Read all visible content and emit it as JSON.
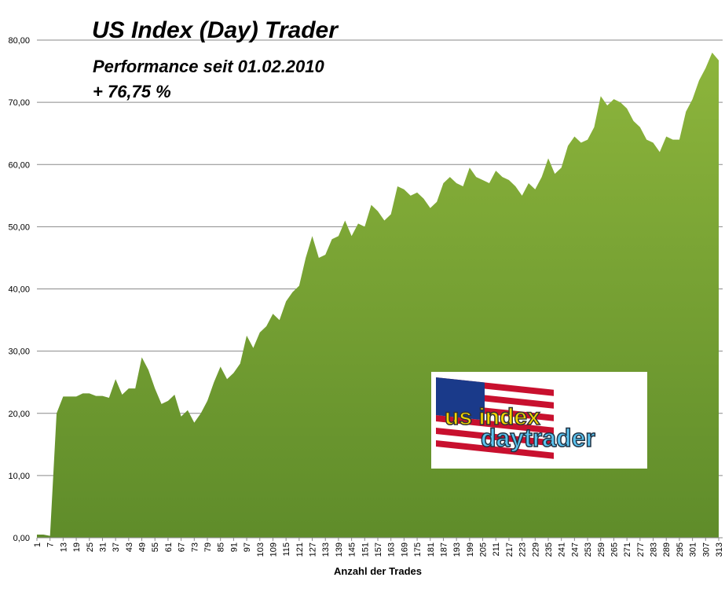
{
  "chart_data": {
    "type": "area",
    "title": "US Index (Day) Trader",
    "subtitle": "Performance  seit  01.02.2010",
    "annotation": "+ 76,75 %",
    "x_label": "Anzahl der Trades",
    "logo_texts": [
      "us index",
      "daytrader"
    ],
    "color": "#8db53c",
    "grid": true,
    "x": [
      1,
      4,
      7,
      10,
      13,
      16,
      19,
      22,
      25,
      28,
      31,
      34,
      37,
      40,
      43,
      46,
      49,
      52,
      55,
      58,
      61,
      64,
      67,
      70,
      73,
      76,
      79,
      82,
      85,
      88,
      91,
      94,
      97,
      100,
      103,
      106,
      109,
      112,
      115,
      118,
      121,
      124,
      127,
      130,
      133,
      136,
      139,
      142,
      145,
      148,
      151,
      154,
      157,
      160,
      163,
      166,
      169,
      172,
      175,
      178,
      181,
      184,
      187,
      190,
      193,
      196,
      199,
      202,
      205,
      208,
      211,
      214,
      217,
      220,
      223,
      226,
      229,
      232,
      235,
      238,
      241,
      244,
      247,
      250,
      253,
      256,
      259,
      262,
      265,
      268,
      271,
      274,
      277,
      280,
      283,
      286,
      289,
      292,
      295,
      298,
      301,
      304,
      307,
      310,
      313
    ],
    "values": [
      0.5,
      0.5,
      0.3,
      20,
      22.7,
      22.7,
      22.7,
      23.2,
      23.2,
      22.8,
      22.8,
      22.5,
      25.5,
      23,
      24,
      24,
      29,
      27,
      24,
      21.5,
      22,
      23,
      19.5,
      20.5,
      18.5,
      20,
      22,
      25,
      27.5,
      25.5,
      26.5,
      28,
      32.5,
      30.5,
      33,
      34,
      36,
      35,
      38,
      39.5,
      40.5,
      45,
      48.5,
      45,
      45.5,
      48,
      48.5,
      51,
      48.5,
      50.5,
      50,
      53.5,
      52.5,
      51,
      52,
      56.5,
      56,
      55,
      55.5,
      54.5,
      53,
      54,
      57,
      58,
      57,
      56.5,
      59.5,
      58,
      57.5,
      57,
      59,
      58,
      57.5,
      56.5,
      55,
      57,
      56,
      58,
      61,
      58.5,
      59.5,
      63,
      64.5,
      63.5,
      64,
      66,
      71,
      69.5,
      70.5,
      70,
      69,
      67,
      66,
      64,
      63.5,
      62,
      64.5,
      64,
      64,
      68.5,
      70.5,
      73.5,
      75.5,
      78,
      76.75
    ],
    "xlim": [
      1,
      313
    ],
    "xticks": [
      1,
      7,
      13,
      19,
      25,
      31,
      37,
      43,
      49,
      55,
      61,
      67,
      73,
      79,
      85,
      91,
      97,
      103,
      109,
      115,
      121,
      127,
      133,
      139,
      145,
      151,
      157,
      163,
      169,
      175,
      181,
      187,
      193,
      199,
      205,
      211,
      217,
      223,
      229,
      235,
      241,
      247,
      253,
      259,
      265,
      271,
      277,
      283,
      289,
      295,
      301,
      307,
      313
    ],
    "ylim": [
      0,
      80
    ],
    "yticks": [
      {
        "value": 0,
        "label": "0,00"
      },
      {
        "value": 10,
        "label": "10,00"
      },
      {
        "value": 20,
        "label": "20,00"
      },
      {
        "value": 30,
        "label": "30,00"
      },
      {
        "value": 40,
        "label": "40,00"
      },
      {
        "value": 50,
        "label": "50,00"
      },
      {
        "value": 60,
        "label": "60,00"
      },
      {
        "value": 70,
        "label": "70,00"
      },
      {
        "value": 80,
        "label": "80,00"
      }
    ]
  }
}
